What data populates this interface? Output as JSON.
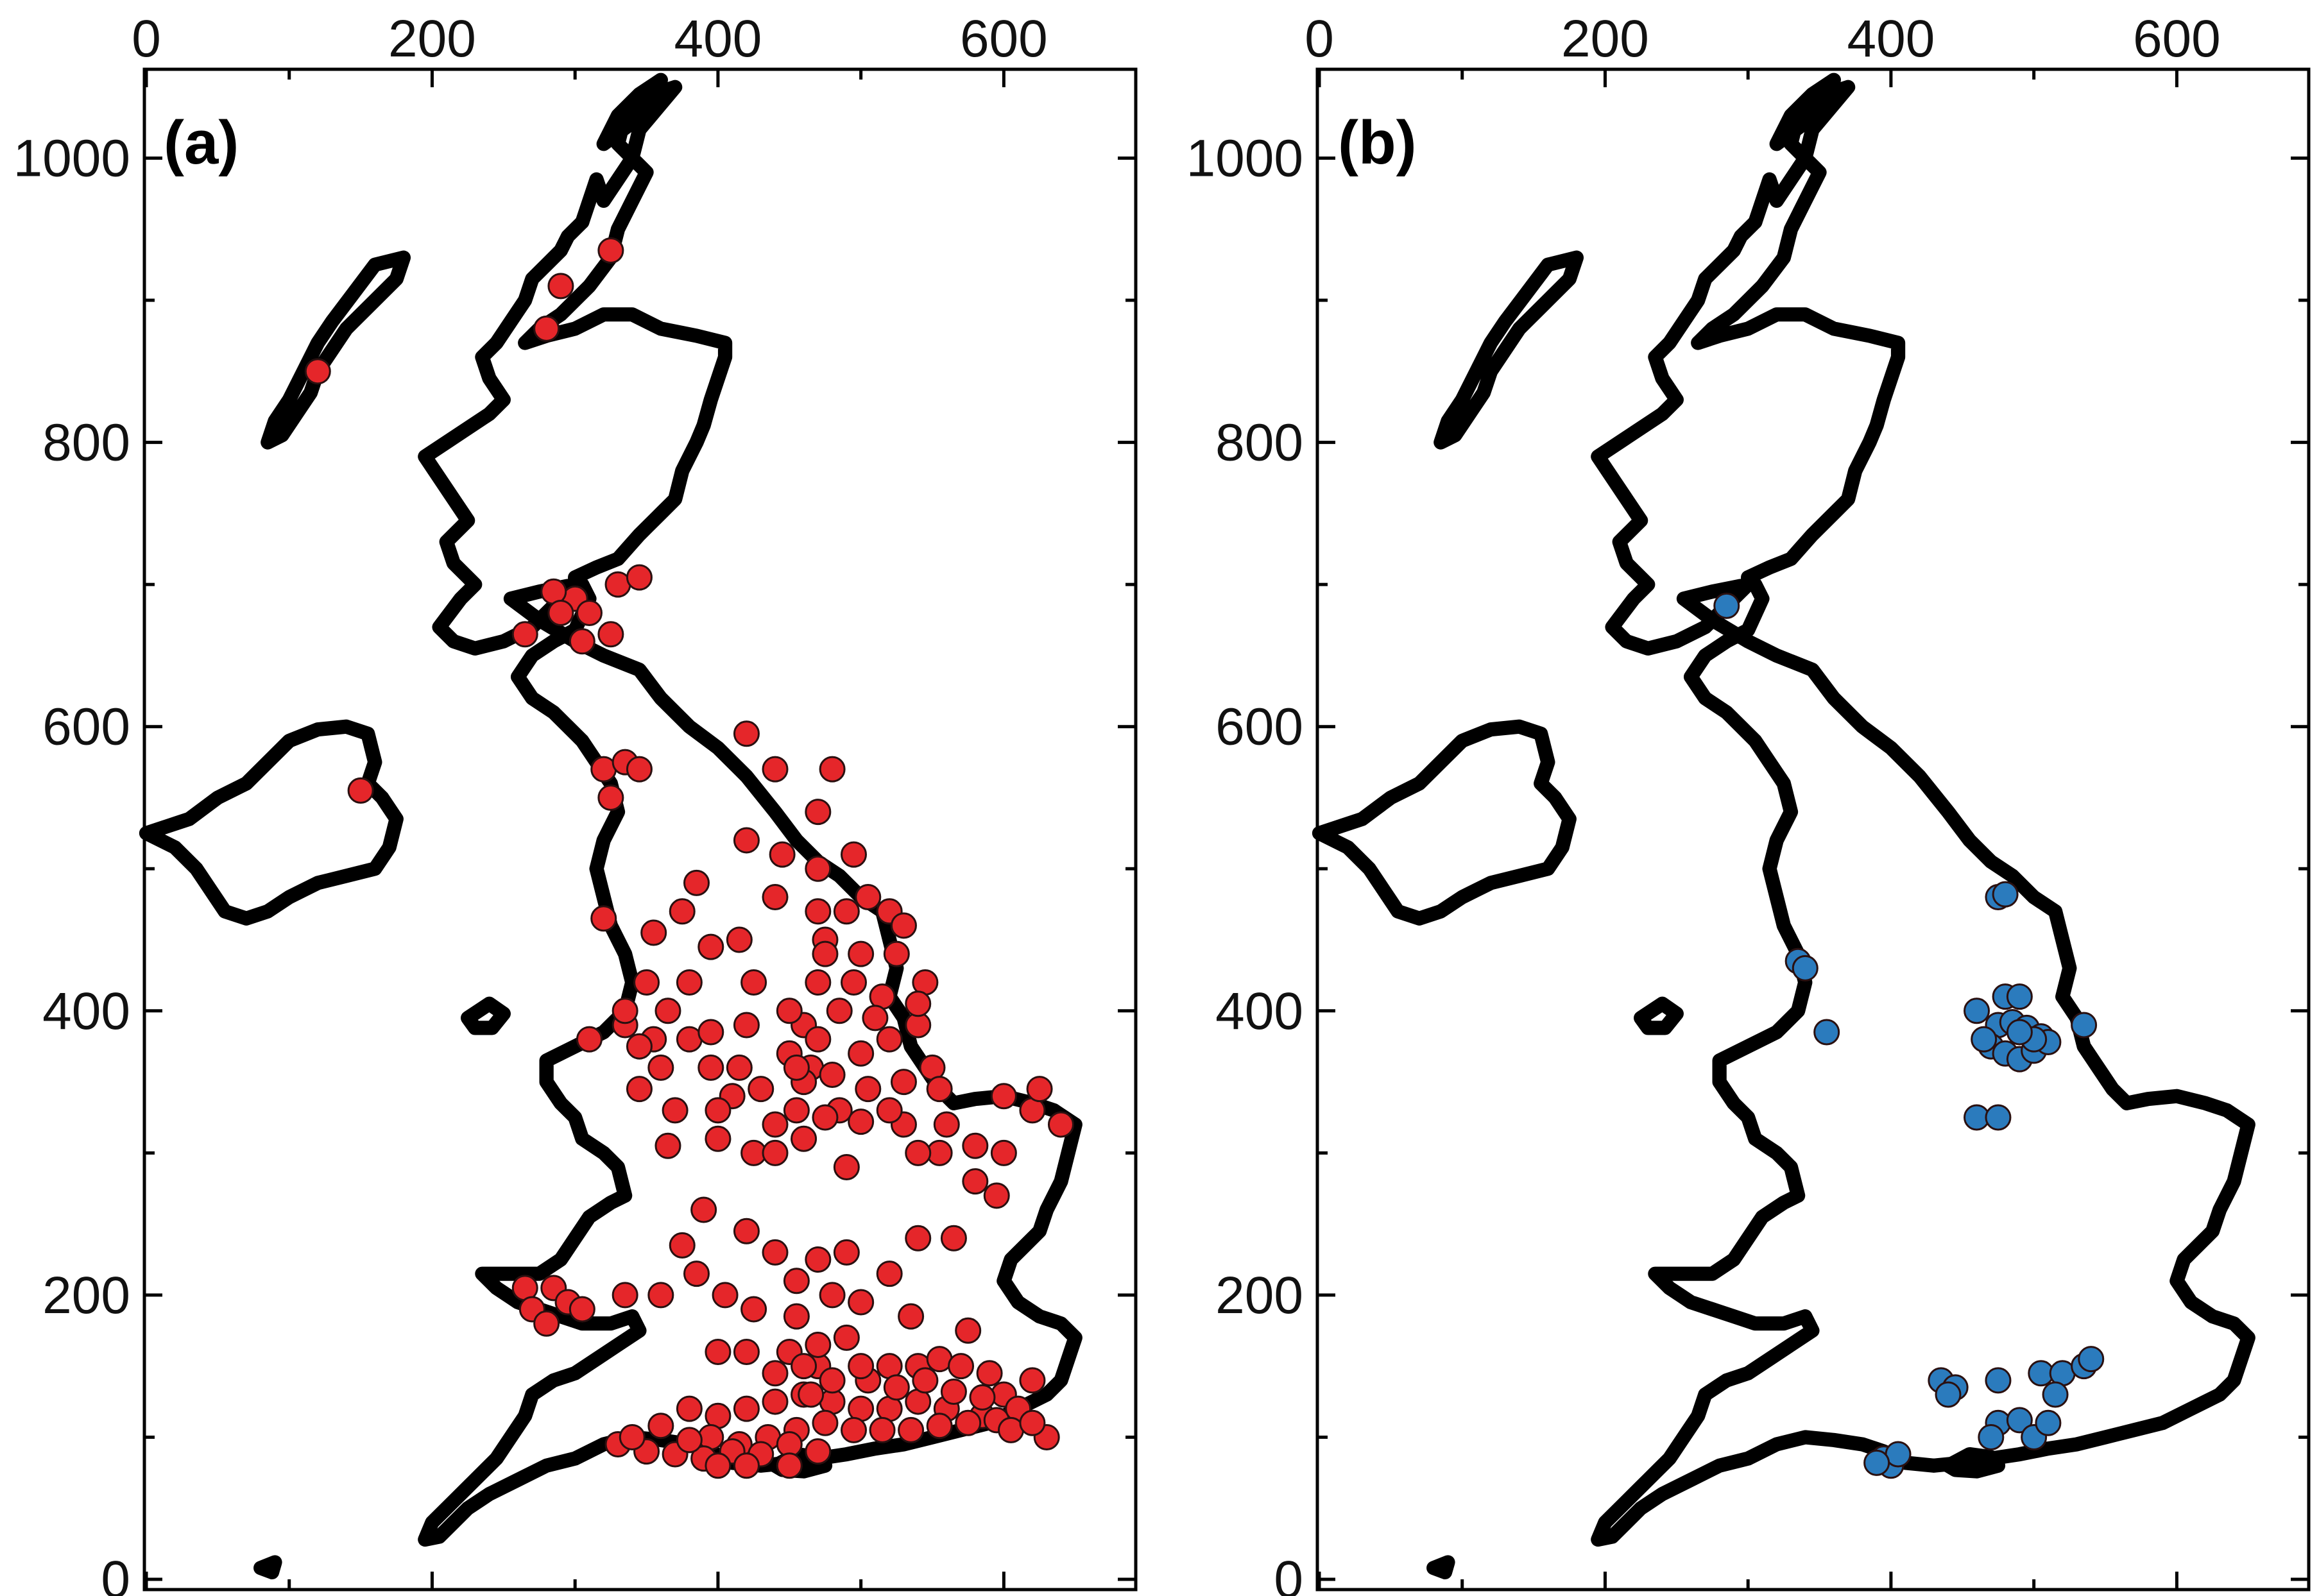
{
  "panels": [
    {
      "id": "a",
      "label": "(a)",
      "x_ticks": [
        "0",
        "200",
        "400",
        "600"
      ],
      "y_ticks": [
        "0",
        "200",
        "400",
        "600",
        "800",
        "1000"
      ],
      "marker_color": "#e5262a",
      "sites": [
        [
          120,
          850
        ],
        [
          290,
          910
        ],
        [
          325,
          935
        ],
        [
          280,
          880
        ],
        [
          300,
          690
        ],
        [
          330,
          700
        ],
        [
          285,
          695
        ],
        [
          310,
          680
        ],
        [
          345,
          705
        ],
        [
          325,
          665
        ],
        [
          290,
          680
        ],
        [
          265,
          665
        ],
        [
          305,
          660
        ],
        [
          150,
          555
        ],
        [
          320,
          570
        ],
        [
          335,
          575
        ],
        [
          325,
          550
        ],
        [
          345,
          570
        ],
        [
          420,
          595
        ],
        [
          440,
          570
        ],
        [
          480,
          570
        ],
        [
          420,
          520
        ],
        [
          445,
          510
        ],
        [
          440,
          480
        ],
        [
          470,
          540
        ],
        [
          320,
          465
        ],
        [
          355,
          455
        ],
        [
          395,
          445
        ],
        [
          415,
          450
        ],
        [
          350,
          420
        ],
        [
          365,
          400
        ],
        [
          380,
          380
        ],
        [
          395,
          360
        ],
        [
          410,
          340
        ],
        [
          420,
          390
        ],
        [
          425,
          420
        ],
        [
          380,
          420
        ],
        [
          355,
          380
        ],
        [
          360,
          360
        ],
        [
          345,
          345
        ],
        [
          400,
          330
        ],
        [
          370,
          330
        ],
        [
          365,
          305
        ],
        [
          400,
          310
        ],
        [
          440,
          320
        ],
        [
          425,
          300
        ],
        [
          455,
          330
        ],
        [
          465,
          360
        ],
        [
          460,
          390
        ],
        [
          470,
          420
        ],
        [
          475,
          450
        ],
        [
          490,
          470
        ],
        [
          505,
          480
        ],
        [
          520,
          470
        ],
        [
          500,
          440
        ],
        [
          515,
          410
        ],
        [
          520,
          380
        ],
        [
          530,
          350
        ],
        [
          505,
          345
        ],
        [
          485,
          330
        ],
        [
          470,
          380
        ],
        [
          485,
          400
        ],
        [
          495,
          420
        ],
        [
          475,
          440
        ],
        [
          450,
          400
        ],
        [
          450,
          370
        ],
        [
          460,
          350
        ],
        [
          480,
          355
        ],
        [
          500,
          370
        ],
        [
          510,
          395
        ],
        [
          540,
          390
        ],
        [
          550,
          360
        ],
        [
          545,
          420
        ],
        [
          525,
          440
        ],
        [
          530,
          460
        ],
        [
          540,
          405
        ],
        [
          555,
          345
        ],
        [
          530,
          320
        ],
        [
          555,
          300
        ],
        [
          580,
          305
        ],
        [
          600,
          300
        ],
        [
          620,
          330
        ],
        [
          640,
          320
        ],
        [
          600,
          340
        ],
        [
          625,
          345
        ],
        [
          540,
          300
        ],
        [
          580,
          280
        ],
        [
          595,
          270
        ],
        [
          490,
          290
        ],
        [
          385,
          490
        ],
        [
          310,
          380
        ],
        [
          335,
          390
        ],
        [
          375,
          470
        ],
        [
          470,
          470
        ],
        [
          470,
          500
        ],
        [
          495,
          510
        ],
        [
          455,
          360
        ],
        [
          475,
          325
        ],
        [
          500,
          322
        ],
        [
          520,
          330
        ],
        [
          415,
          360
        ],
        [
          395,
          385
        ],
        [
          430,
          345
        ],
        [
          440,
          300
        ],
        [
          460,
          310
        ],
        [
          335,
          400
        ],
        [
          345,
          375
        ],
        [
          560,
          320
        ],
        [
          565,
          240
        ],
        [
          540,
          240
        ],
        [
          575,
          175
        ],
        [
          535,
          185
        ],
        [
          390,
          260
        ],
        [
          375,
          235
        ],
        [
          385,
          215
        ],
        [
          420,
          245
        ],
        [
          405,
          200
        ],
        [
          440,
          230
        ],
        [
          455,
          210
        ],
        [
          470,
          225
        ],
        [
          490,
          230
        ],
        [
          425,
          190
        ],
        [
          455,
          185
        ],
        [
          480,
          200
        ],
        [
          500,
          195
        ],
        [
          520,
          215
        ],
        [
          265,
          205
        ],
        [
          285,
          205
        ],
        [
          270,
          190
        ],
        [
          295,
          195
        ],
        [
          305,
          190
        ],
        [
          280,
          180
        ],
        [
          335,
          200
        ],
        [
          360,
          200
        ],
        [
          400,
          160
        ],
        [
          420,
          160
        ],
        [
          450,
          160
        ],
        [
          470,
          150
        ],
        [
          490,
          170
        ],
        [
          505,
          140
        ],
        [
          520,
          150
        ],
        [
          540,
          150
        ],
        [
          555,
          155
        ],
        [
          570,
          150
        ],
        [
          590,
          145
        ],
        [
          600,
          130
        ],
        [
          585,
          115
        ],
        [
          560,
          120
        ],
        [
          540,
          125
        ],
        [
          520,
          120
        ],
        [
          500,
          120
        ],
        [
          480,
          125
        ],
        [
          460,
          130
        ],
        [
          440,
          125
        ],
        [
          420,
          120
        ],
        [
          400,
          115
        ],
        [
          380,
          120
        ],
        [
          395,
          100
        ],
        [
          415,
          95
        ],
        [
          435,
          100
        ],
        [
          455,
          105
        ],
        [
          475,
          110
        ],
        [
          495,
          105
        ],
        [
          515,
          105
        ],
        [
          535,
          105
        ],
        [
          555,
          108
        ],
        [
          575,
          110
        ],
        [
          595,
          112
        ],
        [
          610,
          120
        ],
        [
          620,
          140
        ],
        [
          630,
          100
        ],
        [
          470,
          90
        ],
        [
          450,
          95
        ],
        [
          430,
          88
        ],
        [
          410,
          90
        ],
        [
          390,
          85
        ],
        [
          370,
          88
        ],
        [
          350,
          90
        ],
        [
          330,
          95
        ],
        [
          360,
          108
        ],
        [
          340,
          100
        ],
        [
          380,
          98
        ],
        [
          465,
          130
        ],
        [
          480,
          140
        ],
        [
          500,
          150
        ],
        [
          525,
          135
        ],
        [
          545,
          140
        ],
        [
          565,
          132
        ],
        [
          585,
          128
        ],
        [
          605,
          105
        ],
        [
          620,
          110
        ],
        [
          460,
          150
        ],
        [
          440,
          145
        ],
        [
          470,
          165
        ],
        [
          450,
          80
        ],
        [
          400,
          80
        ],
        [
          420,
          80
        ]
      ]
    },
    {
      "id": "b",
      "label": "(b)",
      "x_ticks": [
        "0",
        "200",
        "400",
        "600"
      ],
      "y_ticks": [
        "0",
        "200",
        "400",
        "600",
        "800",
        "1000"
      ],
      "marker_color": "#2b7bbd",
      "sites": [
        [
          285,
          685
        ],
        [
          475,
          480
        ],
        [
          480,
          482
        ],
        [
          335,
          435
        ],
        [
          340,
          430
        ],
        [
          355,
          385
        ],
        [
          460,
          400
        ],
        [
          480,
          410
        ],
        [
          490,
          410
        ],
        [
          475,
          390
        ],
        [
          485,
          392
        ],
        [
          495,
          388
        ],
        [
          505,
          382
        ],
        [
          470,
          375
        ],
        [
          480,
          370
        ],
        [
          490,
          366
        ],
        [
          500,
          372
        ],
        [
          510,
          378
        ],
        [
          465,
          380
        ],
        [
          535,
          390
        ],
        [
          500,
          380
        ],
        [
          490,
          385
        ],
        [
          460,
          325
        ],
        [
          475,
          325
        ],
        [
          435,
          140
        ],
        [
          445,
          135
        ],
        [
          440,
          130
        ],
        [
          475,
          140
        ],
        [
          505,
          145
        ],
        [
          520,
          145
        ],
        [
          535,
          150
        ],
        [
          540,
          155
        ],
        [
          515,
          130
        ],
        [
          475,
          110
        ],
        [
          490,
          112
        ],
        [
          500,
          100
        ],
        [
          510,
          110
        ],
        [
          470,
          100
        ],
        [
          395,
          85
        ],
        [
          400,
          80
        ],
        [
          405,
          88
        ],
        [
          390,
          82
        ]
      ]
    }
  ]
}
